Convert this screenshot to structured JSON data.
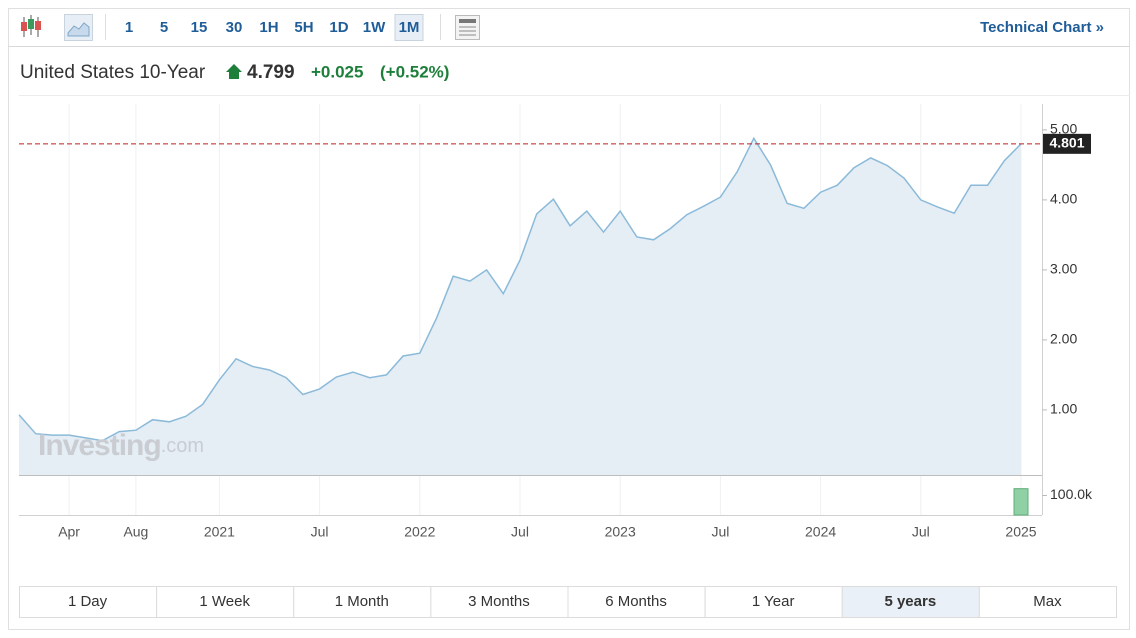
{
  "toolbar": {
    "intervals": [
      "1",
      "5",
      "15",
      "30",
      "1H",
      "5H",
      "1D",
      "1W",
      "1M"
    ],
    "selected_interval": 8,
    "link": "Technical Chart »"
  },
  "header": {
    "name": "United States 10-Year",
    "price": "4.799",
    "change": "+0.025",
    "change_percent": "(+0.52%)"
  },
  "watermark": {
    "brand": "Investing",
    "suffix": ".com"
  },
  "chart_data": {
    "type": "area",
    "color": "#8bbad9",
    "fill": "#e5edf5",
    "grid": "x",
    "categories": [
      null,
      null,
      null,
      "Apr",
      null,
      null,
      null,
      "Aug",
      null,
      null,
      null,
      null,
      "2021",
      null,
      null,
      null,
      null,
      null,
      "Jul",
      null,
      null,
      null,
      null,
      null,
      "2022",
      null,
      null,
      null,
      null,
      null,
      "Jul",
      null,
      null,
      null,
      null,
      null,
      "2023",
      null,
      null,
      null,
      null,
      null,
      "Jul",
      null,
      null,
      null,
      null,
      null,
      "2024",
      null,
      null,
      null,
      null,
      null,
      "Jul",
      null,
      null,
      null,
      null,
      null,
      "2025"
    ],
    "values": [
      0.93,
      0.66,
      0.64,
      0.64,
      0.6,
      0.56,
      0.69,
      0.71,
      0.86,
      0.83,
      0.91,
      1.08,
      1.43,
      1.73,
      1.62,
      1.57,
      1.46,
      1.22,
      1.3,
      1.47,
      1.54,
      1.46,
      1.5,
      1.77,
      1.81,
      2.31,
      2.91,
      2.84,
      3.0,
      2.66,
      3.14,
      3.8,
      4.01,
      3.63,
      3.84,
      3.54,
      3.84,
      3.47,
      3.43,
      3.59,
      3.79,
      3.91,
      4.04,
      4.4,
      4.88,
      4.5,
      3.95,
      3.88,
      4.11,
      4.21,
      4.46,
      4.6,
      4.49,
      4.31,
      4.0,
      3.9,
      3.81,
      4.21,
      4.21,
      4.56,
      4.8
    ],
    "ylim": [
      0.07,
      5.37
    ],
    "yticks": [
      {
        "value": 1,
        "label": "1.00"
      },
      {
        "value": 2,
        "label": "2.00"
      },
      {
        "value": 3,
        "label": "3.00"
      },
      {
        "value": 4,
        "label": "4.00"
      },
      {
        "value": 5,
        "label": "5.00"
      }
    ],
    "reference_line": {
      "value": 4.801,
      "label": "4.801",
      "color": "#b22222"
    },
    "volume": {
      "color": "#8fd1a4",
      "ylim": [
        0,
        200000
      ],
      "yticks": [
        {
          "value": 100000,
          "label": "100.0k"
        }
      ],
      "values": [
        null,
        null,
        null,
        null,
        null,
        null,
        null,
        null,
        null,
        null,
        null,
        null,
        null,
        null,
        null,
        null,
        null,
        null,
        null,
        null,
        null,
        null,
        null,
        null,
        null,
        null,
        null,
        null,
        null,
        null,
        null,
        null,
        null,
        null,
        null,
        null,
        null,
        null,
        null,
        null,
        null,
        null,
        null,
        null,
        null,
        null,
        null,
        null,
        null,
        null,
        null,
        null,
        null,
        null,
        null,
        null,
        null,
        null,
        null,
        null,
        135000
      ]
    }
  },
  "ranges": {
    "options": [
      "1 Day",
      "1 Week",
      "1 Month",
      "3 Months",
      "6 Months",
      "1 Year",
      "5 years",
      "Max"
    ],
    "selected": 6
  }
}
